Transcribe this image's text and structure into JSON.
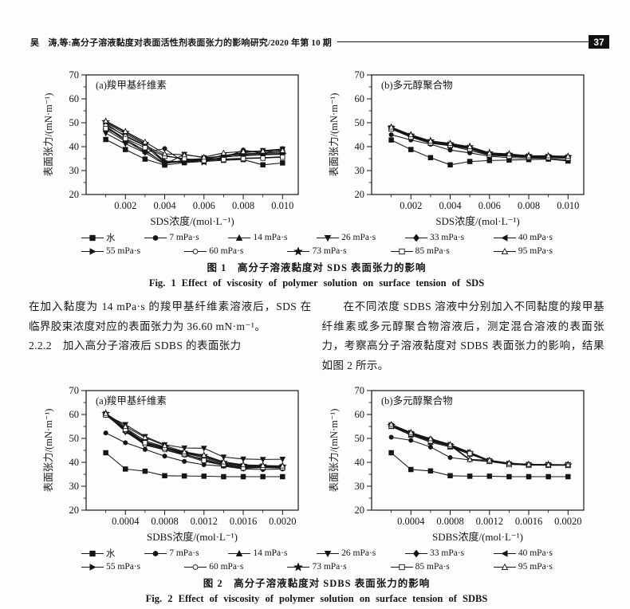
{
  "header": {
    "running_title": "吴　涛,等:高分子溶液黏度对表面活性剂表面张力的影响研究/2020 年第 10 期",
    "page_number": "37"
  },
  "body": {
    "left_paragraph": "在加入黏度为 14 mPa·s 的羧甲基纤维素溶液后，SDS 在临界胶束浓度对应的表面张力为 36.60 mN·m⁻¹。",
    "left_heading": "2.2.2　加入高分子溶液后 SDBS 的表面张力",
    "right_paragraph": "在不同浓度 SDBS 溶液中分别加入不同黏度的羧甲基纤维素或多元醇聚合物溶液后，测定混合溶液的表面张力，考察高分子溶液黏度对 SDBS 表面张力的影响，结果如图 2 所示。"
  },
  "figure1": {
    "caption_zh": "图 1　高分子溶液黏度对 SDS 表面张力的影响",
    "caption_en": "Fig. 1  Effect of viscosity of polymer solution on surface tension of SDS"
  },
  "figure2": {
    "caption_zh": "图 2　高分子溶液黏度对 SDBS 表面张力的影响",
    "caption_en": "Fig. 2  Effect of viscosity of polymer solution on surface tension of SDBS"
  },
  "legend_items": [
    {
      "label": "水",
      "marker": "square"
    },
    {
      "label": "7 mPa·s",
      "marker": "circle"
    },
    {
      "label": "14 mPa·s",
      "marker": "triangle-up"
    },
    {
      "label": "26 mPa·s",
      "marker": "triangle-down"
    },
    {
      "label": "33 mPa·s",
      "marker": "diamond"
    },
    {
      "label": "40 mPa·s",
      "marker": "triangle-left"
    },
    {
      "label": "55 mPa·s",
      "marker": "triangle-right"
    },
    {
      "label": "60 mPa·s",
      "marker": "circle-open"
    },
    {
      "label": "73 mPa·s",
      "marker": "star"
    },
    {
      "label": "85 mPa·s",
      "marker": "square-open"
    },
    {
      "label": "95 mPa·s",
      "marker": "triangle-up-open"
    }
  ],
  "chart_data": [
    {
      "type": "line",
      "title": "(a)羧甲基纤维素",
      "xlabel": "SDS浓度/(mol·L⁻¹)",
      "ylabel": "表面张力/(mN·m⁻¹)",
      "xlim": [
        0,
        0.0108
      ],
      "ylim": [
        20,
        70
      ],
      "xticks": [
        0.002,
        0.004,
        0.006,
        0.008,
        0.01
      ],
      "xtick_labels": [
        "0.002",
        "0.004",
        "0.006",
        "0.008",
        "0.010"
      ],
      "yticks": [
        20,
        30,
        40,
        50,
        60,
        70
      ],
      "x": [
        0.001,
        0.002,
        0.003,
        0.004,
        0.005,
        0.006,
        0.007,
        0.008,
        0.009,
        0.01
      ],
      "series": [
        {
          "name": "水",
          "marker": "square",
          "values": [
            43,
            38.8,
            34.8,
            32.3,
            33.3,
            33.8,
            34.3,
            34.6,
            32.4,
            33.2
          ]
        },
        {
          "name": "7 mPa·s",
          "marker": "circle",
          "values": [
            48.2,
            42.6,
            37.6,
            39.2,
            33.4,
            34.6,
            35.2,
            38.6,
            37.2,
            39.2
          ]
        },
        {
          "name": "14 mPa·s",
          "marker": "triangle-up",
          "values": [
            48.6,
            43.2,
            38.2,
            33,
            34.2,
            34.6,
            36.2,
            37.6,
            38,
            38.6
          ]
        },
        {
          "name": "26 mPa·s",
          "marker": "triangle-down",
          "values": [
            45.6,
            41.2,
            37.4,
            32.6,
            36.8,
            35.4,
            36,
            37.4,
            38.4,
            39
          ]
        },
        {
          "name": "33 mPa·s",
          "marker": "diamond",
          "values": [
            49.6,
            44.2,
            40.4,
            33.2,
            33.6,
            34.8,
            36.4,
            37,
            37.4,
            38
          ]
        },
        {
          "name": "40 mPa·s",
          "marker": "triangle-left",
          "values": [
            47.2,
            42.2,
            38.6,
            32.8,
            34.4,
            35,
            36.2,
            36.8,
            37.2,
            37.4
          ]
        },
        {
          "name": "55 mPa·s",
          "marker": "triangle-right",
          "values": [
            50,
            45.4,
            41,
            34,
            33.8,
            34.2,
            35.6,
            36.4,
            36.8,
            37
          ]
        },
        {
          "name": "60 mPa·s",
          "marker": "circle-open",
          "values": [
            49,
            44.6,
            40.6,
            36.4,
            34.6,
            35,
            34.8,
            35.2,
            35.4,
            35.8
          ]
        },
        {
          "name": "73 mPa·s",
          "marker": "star",
          "values": [
            50.4,
            46,
            41.4,
            33.4,
            34,
            33.6,
            35.8,
            36.2,
            36.6,
            36.8
          ]
        },
        {
          "name": "85 mPa·s",
          "marker": "square-open",
          "values": [
            47.6,
            43.4,
            39.6,
            36,
            35,
            34.2,
            34.6,
            35,
            35.2,
            35.6
          ]
        },
        {
          "name": "95 mPa·s",
          "marker": "triangle-up-open",
          "values": [
            50.8,
            46.4,
            42,
            37,
            36.6,
            35.6,
            37.4,
            38,
            38.2,
            38.4
          ]
        }
      ]
    },
    {
      "type": "line",
      "title": "(b)多元醇聚合物",
      "xlabel": "SDS浓度/(mol·L⁻¹)",
      "ylabel": "表面张力/(mN·m⁻¹)",
      "xlim": [
        0,
        0.0108
      ],
      "ylim": [
        20,
        70
      ],
      "xticks": [
        0.002,
        0.004,
        0.006,
        0.008,
        0.01
      ],
      "xtick_labels": [
        "0.002",
        "0.004",
        "0.006",
        "0.008",
        "0.010"
      ],
      "yticks": [
        20,
        30,
        40,
        50,
        60,
        70
      ],
      "x": [
        0.001,
        0.002,
        0.003,
        0.004,
        0.005,
        0.006,
        0.007,
        0.008,
        0.009,
        0.01
      ],
      "series": [
        {
          "name": "水",
          "marker": "square",
          "values": [
            42.8,
            38.8,
            35.4,
            32.4,
            33.8,
            34.2,
            34.4,
            34.6,
            34.8,
            34
          ]
        },
        {
          "name": "7 mPa·s",
          "marker": "circle",
          "values": [
            45,
            42.8,
            41,
            38.6,
            37.4,
            36,
            35.4,
            35.2,
            35,
            34.4
          ]
        },
        {
          "name": "14 mPa·s",
          "marker": "triangle-up",
          "values": [
            47.4,
            44,
            41.4,
            40.4,
            38.4,
            36.4,
            36,
            35.6,
            35.4,
            35.2
          ]
        },
        {
          "name": "26 mPa·s",
          "marker": "triangle-down",
          "values": [
            47.8,
            44.4,
            42,
            40.8,
            39.4,
            36.8,
            36.4,
            35.8,
            35.8,
            35.4
          ]
        },
        {
          "name": "33 mPa·s",
          "marker": "diamond",
          "values": [
            48,
            44.8,
            42.2,
            41.2,
            39.8,
            37.2,
            36.8,
            36,
            36,
            35.8
          ]
        },
        {
          "name": "40 mPa·s",
          "marker": "triangle-left",
          "values": [
            47.6,
            44.2,
            41.8,
            40.6,
            39.2,
            36.6,
            36.2,
            35.8,
            35.6,
            35.4
          ]
        },
        {
          "name": "55 mPa·s",
          "marker": "triangle-right",
          "values": [
            47.8,
            44.6,
            42,
            41,
            39.6,
            37,
            36.6,
            36,
            35.8,
            35.6
          ]
        },
        {
          "name": "60 mPa·s",
          "marker": "circle-open",
          "values": [
            47.6,
            44.4,
            41.8,
            40.8,
            39.4,
            36.8,
            36.2,
            35.8,
            35.6,
            35.4
          ]
        },
        {
          "name": "73 mPa·s",
          "marker": "star",
          "values": [
            48,
            44.8,
            42.4,
            41.2,
            40,
            37.4,
            36.8,
            36.2,
            36,
            35.8
          ]
        },
        {
          "name": "85 mPa·s",
          "marker": "square-open",
          "values": [
            47.4,
            44,
            41.6,
            40.6,
            39,
            36.6,
            36,
            35.6,
            35.4,
            35.2
          ]
        },
        {
          "name": "95 mPa·s",
          "marker": "triangle-up-open",
          "values": [
            48.2,
            45,
            42.4,
            41.4,
            40,
            37.4,
            37,
            36.2,
            36.2,
            36
          ]
        }
      ]
    },
    {
      "type": "line",
      "title": "(a)羧甲基纤维素",
      "xlabel": "SDBS浓度/(mol·L⁻¹)",
      "ylabel": "表面张力/(mN·m⁻¹)",
      "xlim": [
        0,
        0.00216
      ],
      "ylim": [
        20,
        70
      ],
      "xticks": [
        0.0004,
        0.0008,
        0.0012,
        0.0016,
        0.002
      ],
      "xtick_labels": [
        "0.0004",
        "0.0008",
        "0.0012",
        "0.0016",
        "0.0020"
      ],
      "yticks": [
        20,
        30,
        40,
        50,
        60,
        70
      ],
      "x": [
        0.0002,
        0.0004,
        0.0006,
        0.0008,
        0.001,
        0.0012,
        0.0014,
        0.0016,
        0.0018,
        0.002
      ],
      "series": [
        {
          "name": "水",
          "marker": "square",
          "values": [
            44,
            37.2,
            36.3,
            34.4,
            34.3,
            34.2,
            34,
            34,
            34,
            34
          ]
        },
        {
          "name": "7 mPa·s",
          "marker": "circle",
          "values": [
            52.3,
            48.2,
            45.4,
            42.6,
            40.4,
            39,
            38.4,
            37.2,
            37,
            37.2
          ]
        },
        {
          "name": "14 mPa·s",
          "marker": "triangle-up",
          "values": [
            60,
            53.4,
            48,
            46,
            43.4,
            41,
            38.6,
            38,
            38,
            38
          ]
        },
        {
          "name": "26 mPa·s",
          "marker": "triangle-down",
          "values": [
            59.8,
            55.8,
            50.8,
            47.4,
            46,
            45.9,
            42.2,
            41.4,
            41.2,
            41.3
          ]
        },
        {
          "name": "33 mPa·s",
          "marker": "diamond",
          "values": [
            60.2,
            52.8,
            47.4,
            45.8,
            43.8,
            42,
            39.4,
            38.2,
            38.3,
            38.4
          ]
        },
        {
          "name": "40 mPa·s",
          "marker": "triangle-left",
          "values": [
            60,
            53,
            47.8,
            45.4,
            43.2,
            41.4,
            39,
            37.8,
            38,
            37.8
          ]
        },
        {
          "name": "55 mPa·s",
          "marker": "triangle-right",
          "values": [
            60.3,
            54,
            48.4,
            46.2,
            44,
            42.4,
            39.8,
            38.5,
            38.4,
            38.2
          ]
        },
        {
          "name": "60 mPa·s",
          "marker": "circle-open",
          "values": [
            59.9,
            53.2,
            47.2,
            45.2,
            43,
            40.4,
            38.8,
            37.5,
            37.8,
            37.6
          ]
        },
        {
          "name": "73 mPa·s",
          "marker": "star",
          "values": [
            60.4,
            54.4,
            49,
            46.4,
            44.2,
            42.8,
            40,
            38.8,
            38.6,
            38.4
          ]
        },
        {
          "name": "85 mPa·s",
          "marker": "square-open",
          "values": [
            59.8,
            53.8,
            48.2,
            46,
            43.6,
            40.8,
            39.2,
            37.6,
            37.9,
            37.7
          ]
        },
        {
          "name": "95 mPa·s",
          "marker": "triangle-up-open",
          "values": [
            60.5,
            55,
            50.4,
            47,
            44.4,
            43,
            40.2,
            39,
            38.7,
            38.5
          ]
        }
      ]
    },
    {
      "type": "line",
      "title": "(b)多元醇聚合物",
      "xlabel": "SDBS浓度/(mol·L⁻¹)",
      "ylabel": "表面张力/(mN·m⁻¹)",
      "xlim": [
        0,
        0.00216
      ],
      "ylim": [
        20,
        70
      ],
      "xticks": [
        0.0004,
        0.0008,
        0.0012,
        0.0016,
        0.002
      ],
      "xtick_labels": [
        "0.0004",
        "0.0008",
        "0.0012",
        "0.0016",
        "0.0020"
      ],
      "yticks": [
        20,
        30,
        40,
        50,
        60,
        70
      ],
      "x": [
        0.0002,
        0.0004,
        0.0006,
        0.0008,
        0.001,
        0.0012,
        0.0014,
        0.0016,
        0.0018,
        0.002
      ],
      "series": [
        {
          "name": "水",
          "marker": "square",
          "values": [
            44,
            37,
            36.4,
            34.4,
            34.2,
            34.2,
            34,
            34,
            34,
            34
          ]
        },
        {
          "name": "7 mPa·s",
          "marker": "circle",
          "values": [
            50.5,
            49.2,
            46.4,
            42,
            41,
            40.3,
            39.2,
            38.8,
            38.8,
            38.8
          ]
        },
        {
          "name": "14 mPa·s",
          "marker": "triangle-up",
          "values": [
            55,
            51.4,
            48.4,
            46.4,
            43.4,
            40.5,
            39.2,
            38.9,
            38.9,
            38.9
          ]
        },
        {
          "name": "26 mPa·s",
          "marker": "triangle-down",
          "values": [
            55.3,
            52,
            49,
            47,
            43.8,
            40.6,
            39.3,
            39,
            39,
            39
          ]
        },
        {
          "name": "33 mPa·s",
          "marker": "diamond",
          "values": [
            55.5,
            52.3,
            49.2,
            47.2,
            44,
            40.7,
            39.4,
            39,
            39,
            39
          ]
        },
        {
          "name": "40 mPa·s",
          "marker": "triangle-left",
          "values": [
            55.1,
            51.8,
            48.8,
            46.8,
            43.6,
            40.5,
            39.2,
            38.9,
            38.8,
            38.8
          ]
        },
        {
          "name": "55 mPa·s",
          "marker": "triangle-right",
          "values": [
            55.6,
            52.4,
            49.4,
            47.4,
            44.2,
            40.8,
            39.5,
            39.1,
            39,
            39
          ]
        },
        {
          "name": "60 mPa·s",
          "marker": "circle-open",
          "values": [
            55.8,
            52,
            49.8,
            47,
            41,
            40.4,
            39.6,
            38.9,
            38.9,
            38.9
          ]
        },
        {
          "name": "73 mPa·s",
          "marker": "star",
          "values": [
            55.4,
            52.2,
            49,
            47.1,
            43.9,
            40.6,
            39.3,
            39,
            39,
            38.9
          ]
        },
        {
          "name": "85 mPa·s",
          "marker": "square-open",
          "values": [
            55.2,
            51.9,
            48.9,
            46.9,
            43.7,
            40.5,
            39.2,
            38.9,
            38.8,
            38.8
          ]
        },
        {
          "name": "95 mPa·s",
          "marker": "triangle-up-open",
          "values": [
            55.9,
            52.5,
            49.9,
            47.5,
            41.2,
            40.9,
            39.7,
            39.2,
            39.1,
            39
          ]
        }
      ]
    }
  ]
}
